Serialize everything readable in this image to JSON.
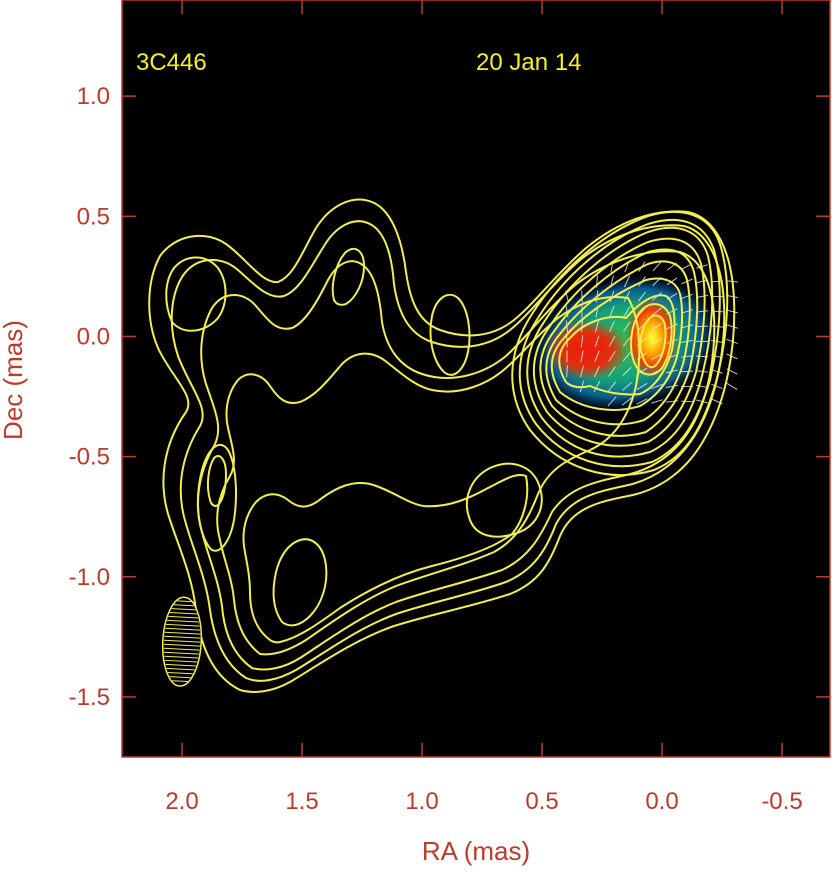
{
  "chart_data": {
    "type": "contour",
    "labels": {
      "source": "3C446",
      "date": "20 Jan 14"
    },
    "xlabel": "RA (mas)",
    "ylabel": "Dec (mas)",
    "xlim": [
      2.25,
      -0.7
    ],
    "ylim": [
      -1.75,
      1.4
    ],
    "x_ticks": [
      2.0,
      1.5,
      1.0,
      0.5,
      0.0,
      -0.5
    ],
    "x_tick_labels": [
      "2.0",
      "1.5",
      "1.0",
      "0.5",
      "0.0",
      "-0.5"
    ],
    "y_ticks": [
      1.0,
      0.5,
      0.0,
      -0.5,
      -1.0,
      -1.5
    ],
    "y_tick_labels": [
      "1.0",
      "0.5",
      "0.0",
      "-0.5",
      "-1.0",
      "-1.5"
    ],
    "core": {
      "ra": 0.0,
      "dec": 0.0
    },
    "intensity_peaks": [
      {
        "ra": 0.0,
        "dec": 0.0,
        "level": 1.0
      },
      {
        "ra": 0.3,
        "dec": -0.05,
        "level": 0.8
      }
    ],
    "beam": {
      "ra": 2.0,
      "dec": -1.27,
      "major": 0.37,
      "minor": 0.16,
      "pa_deg": 3
    },
    "colors": {
      "contour": "#f2ee4e",
      "axis_text": "#c0392b",
      "label_text": "#f6f01e",
      "background": "#000000"
    }
  }
}
